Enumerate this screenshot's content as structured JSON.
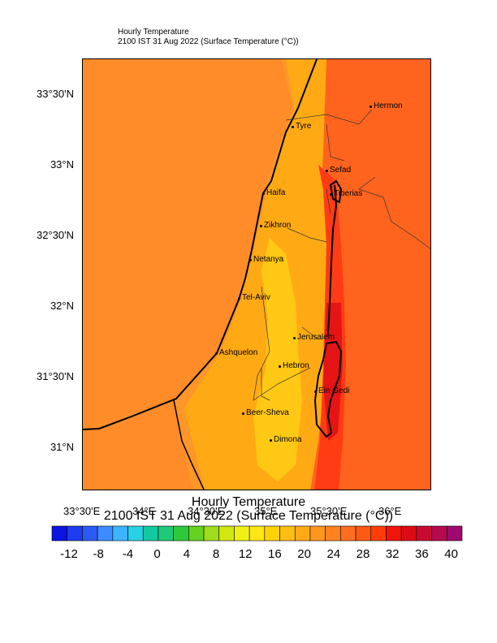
{
  "header": {
    "line1": "Hourly Temperature",
    "line2": "2100 IST 31 Aug 2022   (Surface Temperature  (°C))"
  },
  "colorbar_title": {
    "line1": "Hourly Temperature",
    "line2": "2100 IST 31 Aug 2022  (Surface Temperature  (°C))"
  },
  "lat_labels": [
    "33°30'N",
    "33°N",
    "32°30'N",
    "32°N",
    "31°30'N",
    "31°N"
  ],
  "lon_labels": [
    "33°30'E",
    "34°E",
    "34°30'E",
    "35°E",
    "35°30'E",
    "36°E"
  ],
  "colorbar": {
    "ticks": [
      "-12",
      "-8",
      "-4",
      "0",
      "4",
      "8",
      "12",
      "16",
      "20",
      "24",
      "28",
      "32",
      "36",
      "40"
    ],
    "colors": [
      "#0a14e0",
      "#1e3cf0",
      "#2d5af5",
      "#3c8cff",
      "#3cb4ff",
      "#28d2e6",
      "#14c8a0",
      "#1ec878",
      "#2dc83c",
      "#64d21e",
      "#a0dc1e",
      "#d2e614",
      "#f0f014",
      "#ffe614",
      "#ffd20a",
      "#ffbe14",
      "#ffaa14",
      "#ff961e",
      "#ff821e",
      "#ff6e1e",
      "#ff5a14",
      "#ff3c0a",
      "#f0140a",
      "#dc0a14",
      "#c80a32",
      "#b40a50",
      "#a00a6e"
    ]
  },
  "cities": [
    {
      "name": "Hermon"
    },
    {
      "name": "Tyre"
    },
    {
      "name": "Sefad"
    },
    {
      "name": "Haifa"
    },
    {
      "name": "Tiberias"
    },
    {
      "name": "Zikhron"
    },
    {
      "name": "Netanya"
    },
    {
      "name": "Tel-Aviv"
    },
    {
      "name": "Jerusalem"
    },
    {
      "name": "Ashquelon"
    },
    {
      "name": "Hebron"
    },
    {
      "name": "Ein Gedi"
    },
    {
      "name": "Beer-Sheva"
    },
    {
      "name": "Dimona"
    }
  ],
  "map_colors": {
    "sea": "#ff8c28",
    "coast": "#ff9628",
    "hills": "#ffc814",
    "warm": "#ffaa14",
    "hot": "#ff641e",
    "hotter": "#ff3c14",
    "hottest": "#e61414"
  }
}
